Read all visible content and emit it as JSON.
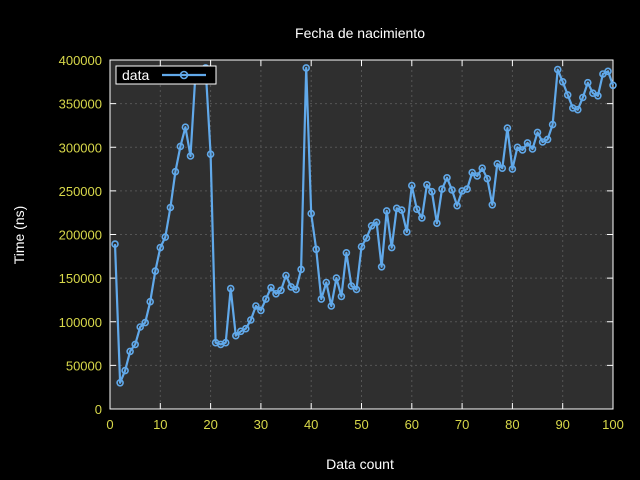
{
  "chart_data": {
    "type": "line",
    "title": "Fecha de nacimiento",
    "xlabel": "Data count",
    "ylabel": "Time (ns)",
    "xlim": [
      0,
      100
    ],
    "ylim": [
      0,
      400000
    ],
    "xticks": [
      0,
      10,
      20,
      30,
      40,
      50,
      60,
      70,
      80,
      90,
      100
    ],
    "yticks": [
      0,
      50000,
      100000,
      150000,
      200000,
      250000,
      300000,
      350000,
      400000
    ],
    "grid": true,
    "legend_position": "top-left",
    "colors": {
      "series": "#61a9ea",
      "background": "#2f2f2f",
      "ticks": "#d8d84a",
      "text": "#ffffff"
    },
    "series": [
      {
        "name": "data",
        "x": [
          1,
          2,
          3,
          4,
          5,
          6,
          7,
          8,
          9,
          10,
          11,
          12,
          13,
          14,
          15,
          16,
          17,
          18,
          19,
          20,
          21,
          22,
          23,
          24,
          25,
          26,
          27,
          28,
          29,
          30,
          31,
          32,
          33,
          34,
          35,
          36,
          37,
          38,
          39,
          40,
          41,
          42,
          43,
          44,
          45,
          46,
          47,
          48,
          49,
          50,
          51,
          52,
          53,
          54,
          55,
          56,
          57,
          58,
          59,
          60,
          61,
          62,
          63,
          64,
          65,
          66,
          67,
          68,
          69,
          70,
          71,
          72,
          73,
          74,
          75,
          76,
          77,
          78,
          79,
          80,
          81,
          82,
          83,
          84,
          85,
          86,
          87,
          88,
          89,
          90,
          91,
          92,
          93,
          94,
          95,
          96,
          97,
          98,
          99,
          100
        ],
        "y": [
          189000,
          30000,
          44000,
          66000,
          74000,
          94000,
          99000,
          123000,
          158000,
          185000,
          197000,
          231000,
          272000,
          301000,
          323000,
          290000,
          385000,
          385000,
          391000,
          292000,
          76000,
          74000,
          76000,
          138000,
          84000,
          89000,
          92000,
          102000,
          118000,
          113000,
          126000,
          139000,
          132000,
          136000,
          153000,
          140000,
          137000,
          160000,
          391000,
          224000,
          183000,
          126000,
          145000,
          118000,
          150000,
          129000,
          179000,
          141000,
          137000,
          186000,
          196000,
          210000,
          214000,
          163000,
          227000,
          185000,
          230000,
          228000,
          203000,
          256000,
          229000,
          219000,
          257000,
          249000,
          213000,
          252000,
          265000,
          251000,
          233000,
          250000,
          252000,
          271000,
          267000,
          276000,
          264000,
          234000,
          281000,
          276000,
          322000,
          275000,
          300000,
          297000,
          305000,
          298000,
          317000,
          306000,
          309000,
          326000,
          389000,
          375000,
          360000,
          345000,
          343000,
          357000,
          374000,
          362000,
          359000,
          384000,
          387000,
          371000
        ]
      }
    ]
  }
}
